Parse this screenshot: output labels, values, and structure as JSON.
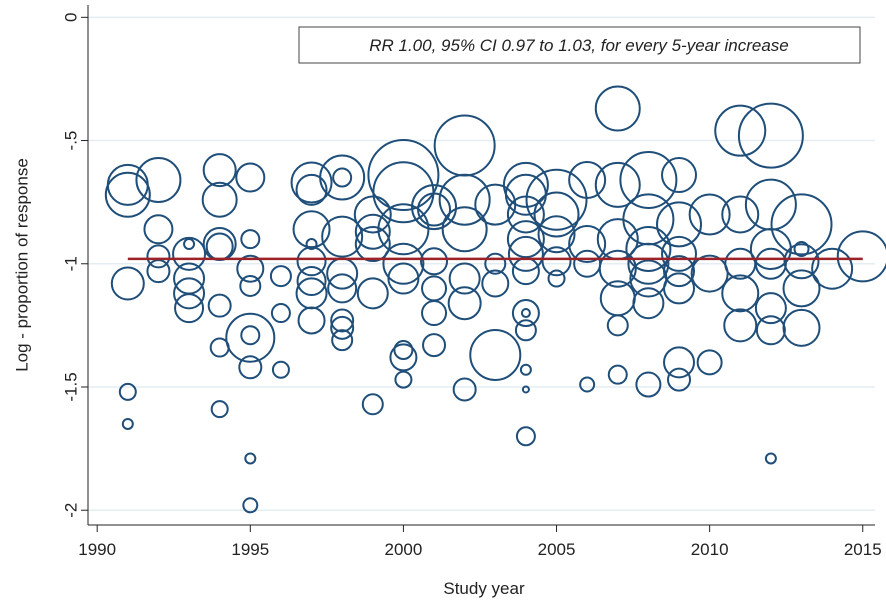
{
  "chart_data": {
    "type": "scatter",
    "x_label": "Study year",
    "y_label": "Log - proportion of response",
    "annotation": "RR 1.00, 95% CI 0.97 to 1.03, for every 5-year increase",
    "xlim": [
      1989.7,
      2015.4
    ],
    "ylim": [
      -2.06,
      0.05
    ],
    "xticks": [
      1990,
      1995,
      2000,
      2005,
      2010,
      2015
    ],
    "yticks": [
      0,
      {
        "value": -0.5,
        "label": "-.5"
      },
      -1,
      {
        "value": -1.5,
        "label": "-1.5"
      },
      -2
    ],
    "grid": true,
    "series": [
      {
        "color": "#1f4e79",
        "x": [
          1991,
          1991,
          1991,
          1991,
          1991,
          1992,
          1992,
          1992,
          1992,
          1993,
          1993,
          1993,
          1993,
          1993,
          1994,
          1994,
          1994,
          1994,
          1994,
          1994,
          1994,
          1995,
          1995,
          1995,
          1995,
          1995,
          1995,
          1995,
          1995,
          1995,
          1996,
          1996,
          1996,
          1997,
          1997,
          1997,
          1997,
          1997,
          1997,
          1997,
          1997,
          1998,
          1998,
          1998,
          1998,
          1998,
          1998,
          1998,
          1998,
          1999,
          1999,
          1999,
          1999,
          1999,
          2000,
          2000,
          2000,
          2000,
          2000,
          2000,
          2000,
          2000,
          2001,
          2001,
          2001,
          2001,
          2001,
          2001,
          2002,
          2002,
          2002,
          2002,
          2002,
          2002,
          2003,
          2003,
          2003,
          2003,
          2004,
          2004,
          2004,
          2004,
          2004,
          2004,
          2004,
          2004,
          2004,
          2004,
          2004,
          2004,
          2005,
          2005,
          2005,
          2005,
          2005,
          2006,
          2006,
          2006,
          2006,
          2007,
          2007,
          2007,
          2007,
          2007,
          2007,
          2007,
          2008,
          2008,
          2008,
          2008,
          2008,
          2008,
          2008,
          2009,
          2009,
          2009,
          2009,
          2009,
          2009,
          2009,
          2010,
          2010,
          2010,
          2011,
          2011,
          2011,
          2011,
          2011,
          2012,
          2012,
          2012,
          2012,
          2012,
          2012,
          2012,
          2013,
          2013,
          2013,
          2013,
          2013,
          2014,
          2015
        ],
        "values": [
          -0.72,
          -0.68,
          -1.08,
          -1.52,
          -1.65,
          -0.66,
          -0.86,
          -0.97,
          -1.03,
          -0.92,
          -0.96,
          -1.06,
          -1.12,
          -1.18,
          -0.62,
          -0.74,
          -0.93,
          -0.92,
          -1.17,
          -1.34,
          -1.59,
          -0.65,
          -0.9,
          -1.02,
          -1.09,
          -1.3,
          -1.29,
          -1.42,
          -1.79,
          -1.98,
          -1.05,
          -1.2,
          -1.43,
          -0.67,
          -0.86,
          -0.92,
          -0.99,
          -1.07,
          -1.12,
          -1.23,
          -0.7,
          -0.65,
          -0.65,
          -0.89,
          -1.04,
          -1.1,
          -1.23,
          -1.26,
          -1.31,
          -0.8,
          -0.87,
          -0.92,
          -1.12,
          -1.57,
          -0.64,
          -0.71,
          -0.86,
          -1.0,
          -1.06,
          -1.35,
          -1.38,
          -1.47,
          -0.77,
          -0.78,
          -0.99,
          -1.1,
          -1.2,
          -1.33,
          -0.52,
          -0.74,
          -0.86,
          -1.06,
          -1.16,
          -1.51,
          -0.76,
          -1.0,
          -1.08,
          -1.37,
          -0.68,
          -0.72,
          -0.8,
          -0.9,
          -0.96,
          -1.03,
          -1.2,
          -1.27,
          -1.2,
          -1.43,
          -1.51,
          -1.7,
          -0.74,
          -0.8,
          -0.88,
          -0.99,
          -1.06,
          -0.66,
          -0.92,
          -1.0,
          -1.49,
          -0.37,
          -0.68,
          -0.9,
          -1.02,
          -1.14,
          -1.25,
          -1.45,
          -0.66,
          -0.82,
          -0.94,
          -1.0,
          -1.06,
          -1.16,
          -1.49,
          -0.64,
          -0.84,
          -0.96,
          -1.03,
          -1.1,
          -1.4,
          -1.47,
          -0.8,
          -1.04,
          -1.4,
          -0.46,
          -0.8,
          -1.0,
          -1.12,
          -1.25,
          -0.48,
          -0.76,
          -0.94,
          -1.0,
          -1.18,
          -1.27,
          -1.79,
          -0.84,
          -0.94,
          -0.99,
          -1.1,
          -1.26,
          -1.02,
          -0.97
        ],
        "sizes": [
          22,
          20,
          16,
          8,
          5,
          22,
          14,
          11,
          11,
          5,
          16,
          15,
          15,
          14,
          16,
          17,
          13,
          16,
          11,
          9,
          8,
          14,
          9,
          13,
          10,
          24,
          9,
          11,
          5,
          7,
          10,
          9,
          8,
          20,
          18,
          5,
          14,
          14,
          15,
          13,
          15,
          22,
          9,
          20,
          15,
          14,
          11,
          11,
          10,
          18,
          17,
          17,
          15,
          10,
          35,
          30,
          25,
          20,
          15,
          9,
          13,
          8,
          22,
          16,
          13,
          12,
          12,
          11,
          30,
          25,
          22,
          15,
          16,
          11,
          20,
          10,
          13,
          25,
          22,
          20,
          18,
          18,
          17,
          13,
          13,
          10,
          4,
          5,
          3,
          9,
          30,
          22,
          18,
          14,
          8,
          18,
          18,
          13,
          7,
          22,
          22,
          20,
          18,
          17,
          10,
          9,
          28,
          25,
          22,
          20,
          18,
          15,
          12,
          17,
          22,
          17,
          15,
          15,
          15,
          11,
          20,
          18,
          12,
          25,
          18,
          15,
          18,
          16,
          32,
          25,
          20,
          15,
          15,
          14,
          5,
          30,
          7,
          17,
          18,
          18,
          20,
          25
        ]
      }
    ],
    "fit": {
      "color": "#9b2226",
      "x": [
        1991,
        2015
      ],
      "values": [
        -0.98,
        -0.98
      ]
    }
  }
}
